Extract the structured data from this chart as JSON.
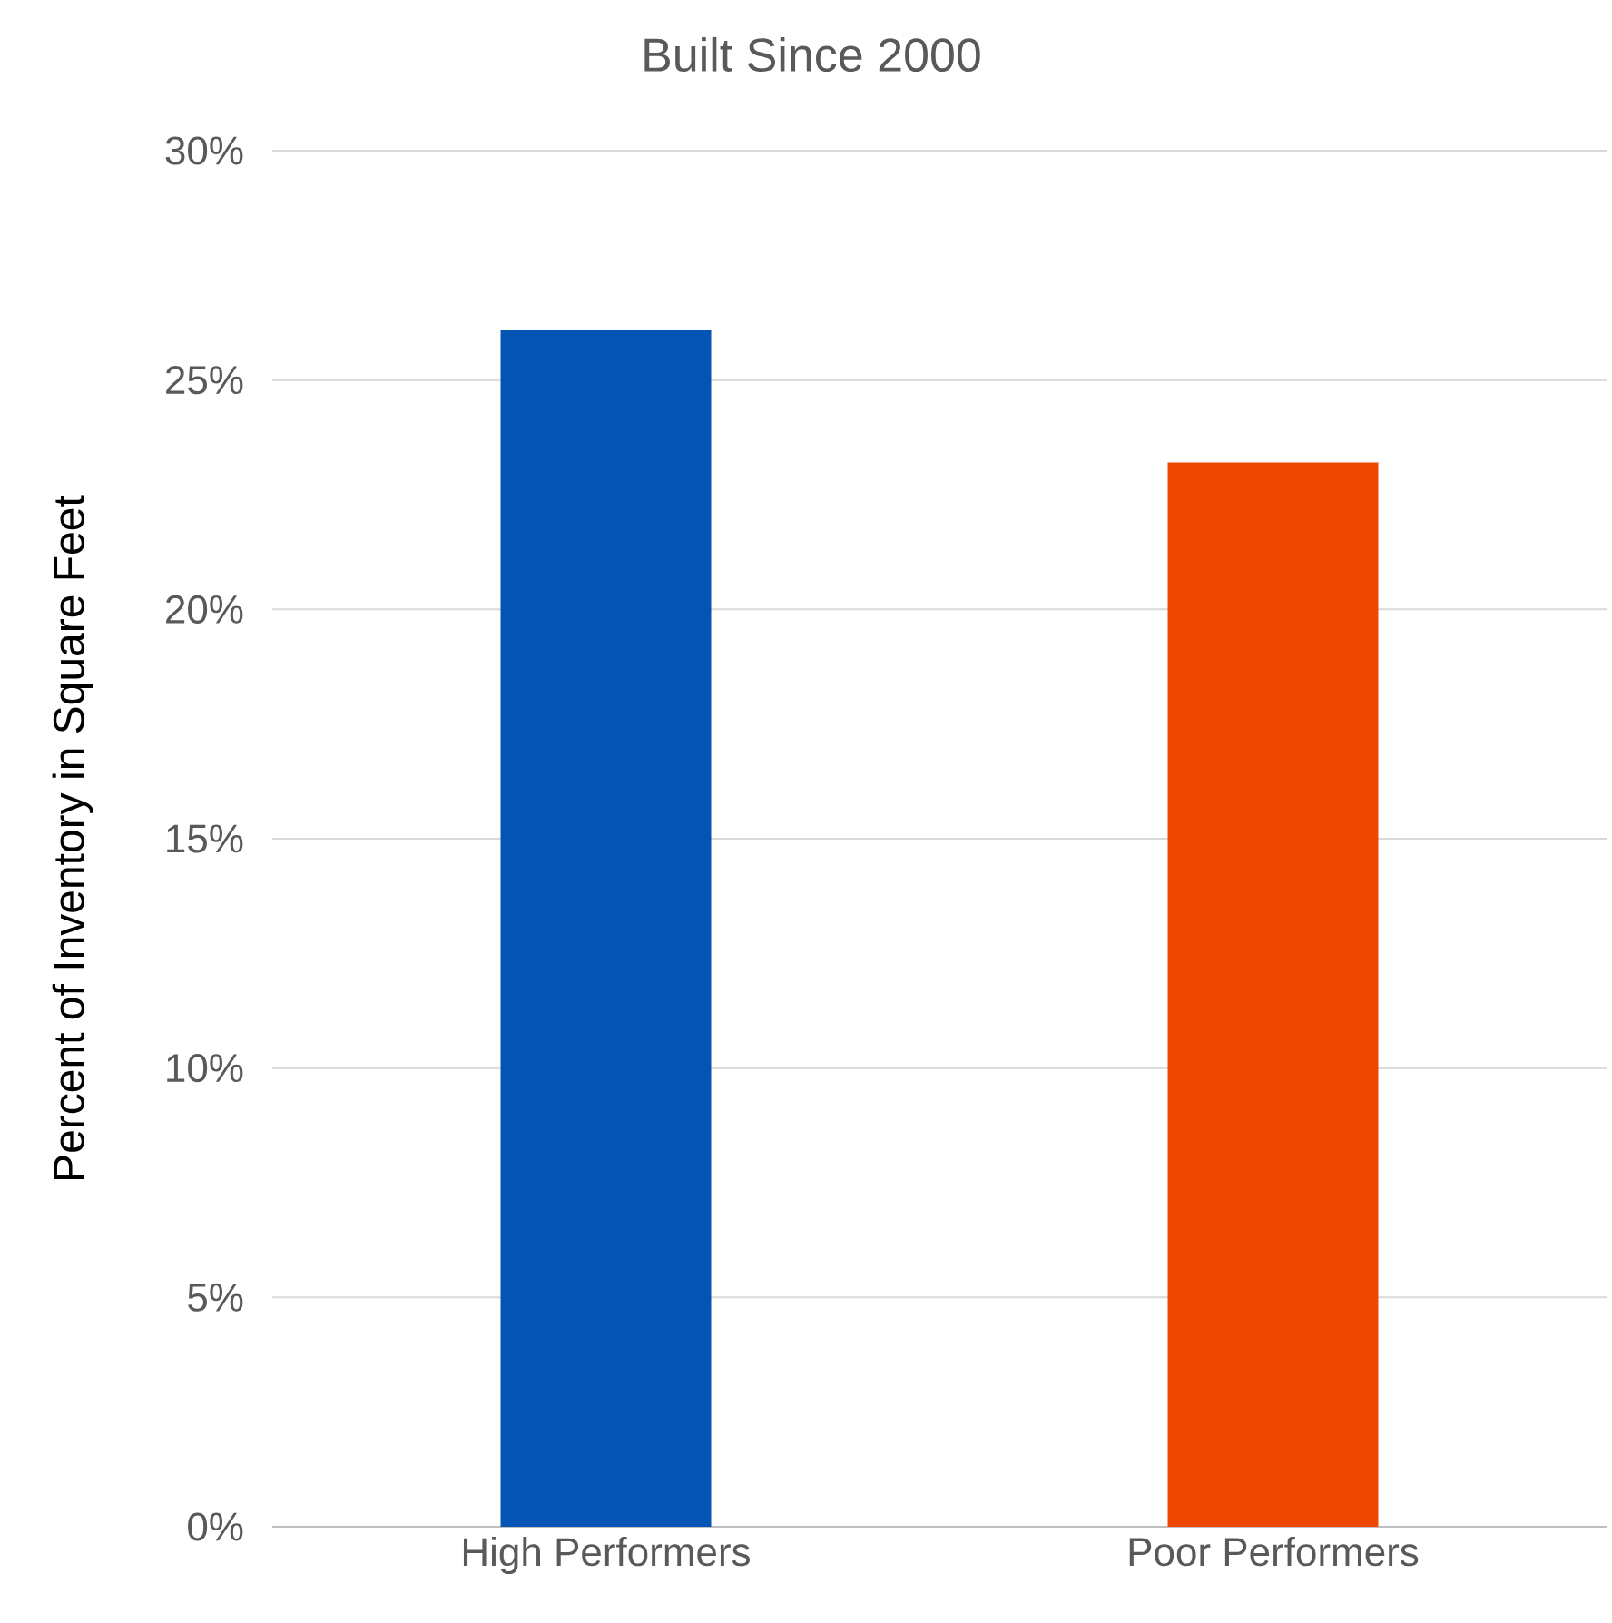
{
  "chart_data": {
    "type": "bar",
    "title": "Built Since 2000",
    "ylabel": "Percent of Inventory in Square Feet",
    "categories": [
      "High Performers",
      "Poor Performers"
    ],
    "values": [
      26.1,
      23.2
    ],
    "colors": [
      "#0455b3",
      "#ee4700"
    ],
    "ylim": [
      0,
      30
    ],
    "yticks": [
      {
        "value": 0,
        "label": "0%"
      },
      {
        "value": 5,
        "label": "5%"
      },
      {
        "value": 10,
        "label": "10%"
      },
      {
        "value": 15,
        "label": "15%"
      },
      {
        "value": 20,
        "label": "20%"
      },
      {
        "value": 25,
        "label": "25%"
      },
      {
        "value": 30,
        "label": "30%"
      }
    ],
    "grid": "y"
  }
}
